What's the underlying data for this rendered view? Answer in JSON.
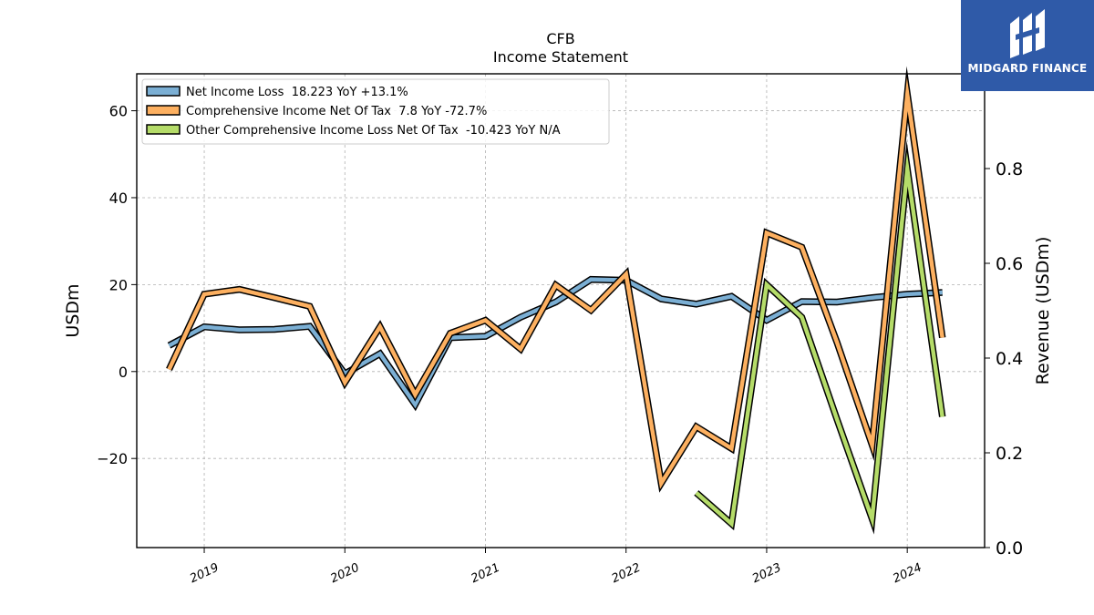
{
  "header": {
    "ticker": "CFB",
    "subtitle": "Income Statement"
  },
  "brand": {
    "name": "MIDGARD FINANCE",
    "color": "#2f5aa8",
    "logo_icon": "midgard-logo-icon"
  },
  "chart_data": {
    "type": "line",
    "title": "CFB",
    "subtitle": "Income Statement",
    "ylabel": "USDm",
    "ylabel_right": "Revenue (USDm)",
    "ylim": [
      -40.5,
      68.5
    ],
    "ylim_right": [
      0.0,
      1.0
    ],
    "yticks": [
      -20,
      0,
      20,
      40,
      60
    ],
    "yticks_right": [
      0.0,
      0.2,
      0.4,
      0.6,
      0.8
    ],
    "ytick_labels": [
      "−20",
      "0",
      "20",
      "40",
      "60"
    ],
    "ytick_labels_right": [
      "0.0",
      "0.2",
      "0.4",
      "0.6",
      "0.8"
    ],
    "x_ticks": [
      2019,
      2020,
      2021,
      2022,
      2023,
      2024
    ],
    "x_tick_labels": [
      "2019",
      "2020",
      "2021",
      "2022",
      "2023",
      "2024"
    ],
    "xlim": [
      2018.52,
      2024.55
    ],
    "grid": true,
    "legend_position": "top-left",
    "series": [
      {
        "name": "Net Income Loss  18.223 YoY +13.1%",
        "color": "#7bafd4",
        "x": [
          2018.75,
          2019.0,
          2019.25,
          2019.5,
          2019.75,
          2020.0,
          2020.25,
          2020.5,
          2020.75,
          2021.0,
          2021.25,
          2021.5,
          2021.75,
          2022.0,
          2022.25,
          2022.5,
          2022.75,
          2023.0,
          2023.25,
          2023.5,
          2023.75,
          2024.0,
          2024.25
        ],
        "y": [
          6.0,
          10.3,
          9.6,
          9.7,
          10.4,
          -0.5,
          4.1,
          -7.6,
          7.8,
          8.1,
          12.5,
          16.0,
          21.2,
          21.0,
          16.7,
          15.5,
          17.3,
          11.8,
          16.1,
          16.0,
          17.0,
          17.8,
          18.2
        ]
      },
      {
        "name": "Comprehensive Income Net Of Tax  7.8 YoY -72.7%",
        "color": "#fdb060",
        "x": [
          2018.75,
          2019.0,
          2019.25,
          2019.5,
          2019.75,
          2020.0,
          2020.25,
          2020.5,
          2020.75,
          2021.0,
          2021.25,
          2021.5,
          2021.75,
          2022.0,
          2022.25,
          2022.5,
          2022.75,
          2023.0,
          2023.25,
          2023.5,
          2023.75,
          2024.0,
          2024.25
        ],
        "y": [
          0.5,
          17.8,
          18.9,
          17.0,
          15.0,
          -2.5,
          10.3,
          -5.3,
          8.8,
          11.8,
          5.2,
          19.9,
          14.1,
          22.4,
          -25.7,
          -12.7,
          -17.7,
          31.9,
          28.6,
          6.7,
          -16.9,
          63.8,
          7.8
        ]
      },
      {
        "name": "Other Comprehensive Income Loss Net Of Tax  -10.423 YoY N/A",
        "color": "#b5dc69",
        "x": [
          2022.5,
          2022.75,
          2023.0,
          2023.25,
          2023.5,
          2023.75,
          2024.0,
          2024.25
        ],
        "y": [
          -27.9,
          -35.0,
          20.0,
          12.5,
          -11.0,
          -33.9,
          46.6,
          -10.4
        ]
      }
    ]
  }
}
